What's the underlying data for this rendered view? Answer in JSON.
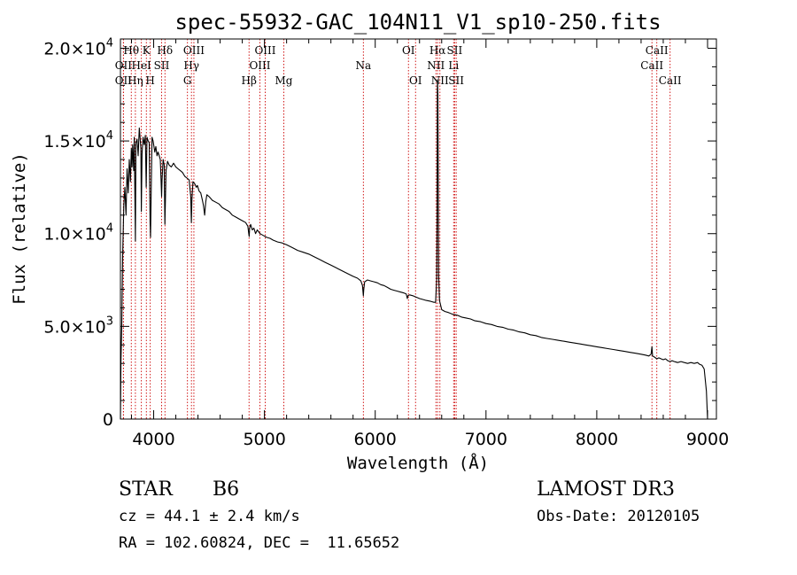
{
  "chart_data": {
    "type": "line",
    "title": "spec-55932-GAC_104N11_V1_sp10-250.fits",
    "xlabel": "Wavelength (Å)",
    "ylabel": "Flux (relative)",
    "xlim": [
      3700,
      9080
    ],
    "ylim": [
      0,
      20500
    ],
    "x_ticks": [
      {
        "value": 4000,
        "label": "4000"
      },
      {
        "value": 5000,
        "label": "5000"
      },
      {
        "value": 6000,
        "label": "6000"
      },
      {
        "value": 7000,
        "label": "7000"
      },
      {
        "value": 8000,
        "label": "8000"
      },
      {
        "value": 9000,
        "label": "9000"
      }
    ],
    "y_ticks": [
      {
        "value": 0,
        "mant": "0",
        "exp": ""
      },
      {
        "value": 5000,
        "mant": "5.0×10",
        "exp": "3"
      },
      {
        "value": 10000,
        "mant": "1.0×10",
        "exp": "4"
      },
      {
        "value": 15000,
        "mant": "1.5×10",
        "exp": "4"
      },
      {
        "value": 20000,
        "mant": "2.0×10",
        "exp": "4"
      }
    ],
    "grid": false,
    "series": [
      {
        "name": "spectrum",
        "points": [
          [
            3700,
            0
          ],
          [
            3705,
            3200
          ],
          [
            3712,
            5000
          ],
          [
            3720,
            8800
          ],
          [
            3730,
            11500
          ],
          [
            3740,
            12500
          ],
          [
            3750,
            11000
          ],
          [
            3760,
            13500
          ],
          [
            3770,
            12200
          ],
          [
            3780,
            14000
          ],
          [
            3790,
            12800
          ],
          [
            3798,
            14600
          ],
          [
            3805,
            13600
          ],
          [
            3810,
            14800
          ],
          [
            3820,
            13400
          ],
          [
            3825,
            15200
          ],
          [
            3835,
            9600
          ],
          [
            3840,
            14900
          ],
          [
            3850,
            15100
          ],
          [
            3860,
            14200
          ],
          [
            3870,
            15700
          ],
          [
            3885,
            14600
          ],
          [
            3889,
            11200
          ],
          [
            3895,
            14300
          ],
          [
            3905,
            15200
          ],
          [
            3915,
            14800
          ],
          [
            3925,
            15300
          ],
          [
            3933,
            12500
          ],
          [
            3940,
            15200
          ],
          [
            3950,
            15000
          ],
          [
            3960,
            14900
          ],
          [
            3968,
            10600
          ],
          [
            3972,
            9800
          ],
          [
            3978,
            12500
          ],
          [
            3985,
            15200
          ],
          [
            3995,
            15000
          ],
          [
            4010,
            14400
          ],
          [
            4020,
            14700
          ],
          [
            4030,
            14200
          ],
          [
            4040,
            14400
          ],
          [
            4050,
            14200
          ],
          [
            4060,
            14000
          ],
          [
            4066,
            13000
          ],
          [
            4072,
            12000
          ],
          [
            4076,
            12900
          ],
          [
            4085,
            14000
          ],
          [
            4095,
            13700
          ],
          [
            4101,
            10500
          ],
          [
            4106,
            11800
          ],
          [
            4112,
            13400
          ],
          [
            4125,
            13900
          ],
          [
            4140,
            13700
          ],
          [
            4160,
            13600
          ],
          [
            4180,
            13800
          ],
          [
            4200,
            13600
          ],
          [
            4220,
            13500
          ],
          [
            4240,
            13400
          ],
          [
            4260,
            13300
          ],
          [
            4280,
            13100
          ],
          [
            4300,
            13000
          ],
          [
            4320,
            12900
          ],
          [
            4335,
            12000
          ],
          [
            4340,
            10600
          ],
          [
            4345,
            11800
          ],
          [
            4355,
            12800
          ],
          [
            4370,
            12700
          ],
          [
            4385,
            12500
          ],
          [
            4395,
            12600
          ],
          [
            4410,
            12300
          ],
          [
            4425,
            12200
          ],
          [
            4440,
            11800
          ],
          [
            4450,
            11500
          ],
          [
            4460,
            11000
          ],
          [
            4470,
            11700
          ],
          [
            4480,
            12100
          ],
          [
            4500,
            12000
          ],
          [
            4530,
            11800
          ],
          [
            4560,
            11700
          ],
          [
            4590,
            11600
          ],
          [
            4620,
            11400
          ],
          [
            4650,
            11300
          ],
          [
            4680,
            11200
          ],
          [
            4710,
            11000
          ],
          [
            4740,
            10900
          ],
          [
            4770,
            10800
          ],
          [
            4800,
            10700
          ],
          [
            4830,
            10600
          ],
          [
            4850,
            10400
          ],
          [
            4858,
            10000
          ],
          [
            4862,
            9850
          ],
          [
            4866,
            10300
          ],
          [
            4875,
            10500
          ],
          [
            4890,
            10200
          ],
          [
            4905,
            10300
          ],
          [
            4920,
            10000
          ],
          [
            4935,
            10200
          ],
          [
            4960,
            10000
          ],
          [
            4990,
            9900
          ],
          [
            5020,
            9800
          ],
          [
            5050,
            9750
          ],
          [
            5080,
            9650
          ],
          [
            5120,
            9550
          ],
          [
            5160,
            9500
          ],
          [
            5200,
            9400
          ],
          [
            5250,
            9250
          ],
          [
            5300,
            9100
          ],
          [
            5350,
            9000
          ],
          [
            5400,
            8900
          ],
          [
            5450,
            8750
          ],
          [
            5500,
            8600
          ],
          [
            5550,
            8450
          ],
          [
            5600,
            8300
          ],
          [
            5650,
            8150
          ],
          [
            5700,
            8000
          ],
          [
            5750,
            7850
          ],
          [
            5800,
            7700
          ],
          [
            5840,
            7600
          ],
          [
            5870,
            7450
          ],
          [
            5885,
            7200
          ],
          [
            5893,
            6650
          ],
          [
            5897,
            7000
          ],
          [
            5905,
            7400
          ],
          [
            5930,
            7500
          ],
          [
            5960,
            7450
          ],
          [
            5990,
            7400
          ],
          [
            6020,
            7350
          ],
          [
            6050,
            7250
          ],
          [
            6080,
            7200
          ],
          [
            6110,
            7100
          ],
          [
            6140,
            7000
          ],
          [
            6170,
            6950
          ],
          [
            6200,
            6900
          ],
          [
            6230,
            6850
          ],
          [
            6260,
            6800
          ],
          [
            6280,
            6750
          ],
          [
            6290,
            6500
          ],
          [
            6295,
            6650
          ],
          [
            6310,
            6700
          ],
          [
            6340,
            6650
          ],
          [
            6360,
            6600
          ],
          [
            6380,
            6550
          ],
          [
            6400,
            6500
          ],
          [
            6430,
            6450
          ],
          [
            6460,
            6400
          ],
          [
            6500,
            6350
          ],
          [
            6530,
            6300
          ],
          [
            6545,
            6300
          ],
          [
            6555,
            7500
          ],
          [
            6559,
            11000
          ],
          [
            6561,
            17800
          ],
          [
            6563,
            18300
          ],
          [
            6566,
            17500
          ],
          [
            6569,
            12500
          ],
          [
            6572,
            7800
          ],
          [
            6580,
            6400
          ],
          [
            6600,
            5900
          ],
          [
            6630,
            5800
          ],
          [
            6660,
            5750
          ],
          [
            6700,
            5650
          ],
          [
            6740,
            5600
          ],
          [
            6780,
            5500
          ],
          [
            6820,
            5450
          ],
          [
            6860,
            5400
          ],
          [
            6900,
            5300
          ],
          [
            6950,
            5250
          ],
          [
            7000,
            5150
          ],
          [
            7050,
            5100
          ],
          [
            7100,
            5000
          ],
          [
            7150,
            4950
          ],
          [
            7200,
            4850
          ],
          [
            7250,
            4800
          ],
          [
            7300,
            4700
          ],
          [
            7350,
            4650
          ],
          [
            7400,
            4550
          ],
          [
            7450,
            4500
          ],
          [
            7500,
            4400
          ],
          [
            7550,
            4350
          ],
          [
            7600,
            4300
          ],
          [
            7650,
            4250
          ],
          [
            7700,
            4200
          ],
          [
            7750,
            4150
          ],
          [
            7800,
            4100
          ],
          [
            7850,
            4050
          ],
          [
            7900,
            4000
          ],
          [
            7950,
            3950
          ],
          [
            8000,
            3900
          ],
          [
            8050,
            3850
          ],
          [
            8100,
            3800
          ],
          [
            8150,
            3750
          ],
          [
            8200,
            3700
          ],
          [
            8250,
            3650
          ],
          [
            8300,
            3600
          ],
          [
            8350,
            3550
          ],
          [
            8400,
            3500
          ],
          [
            8440,
            3450
          ],
          [
            8470,
            3400
          ],
          [
            8490,
            3500
          ],
          [
            8498,
            3900
          ],
          [
            8504,
            3400
          ],
          [
            8520,
            3350
          ],
          [
            8542,
            3250
          ],
          [
            8560,
            3300
          ],
          [
            8580,
            3250
          ],
          [
            8600,
            3200
          ],
          [
            8620,
            3250
          ],
          [
            8640,
            3150
          ],
          [
            8662,
            3100
          ],
          [
            8680,
            3150
          ],
          [
            8700,
            3100
          ],
          [
            8730,
            3050
          ],
          [
            8760,
            3100
          ],
          [
            8790,
            3050
          ],
          [
            8820,
            3000
          ],
          [
            8850,
            3050
          ],
          [
            8880,
            3000
          ],
          [
            8910,
            3050
          ],
          [
            8930,
            2950
          ],
          [
            8950,
            2900
          ],
          [
            8970,
            2700
          ],
          [
            8990,
            1500
          ],
          [
            9000,
            0
          ]
        ]
      }
    ],
    "spectral_lines": [
      {
        "label": "Hθ",
        "x": 3798,
        "row": 0
      },
      {
        "label": "OII",
        "x": 3727,
        "row": 1
      },
      {
        "label": "OII",
        "x": 3727,
        "row": 2
      },
      {
        "label": "K",
        "x": 3934,
        "row": 0
      },
      {
        "label": "HeI",
        "x": 3889,
        "row": 1
      },
      {
        "label": "Hη",
        "x": 3835,
        "row": 2
      },
      {
        "label": "Hδ",
        "x": 4102,
        "row": 0
      },
      {
        "label": "SII",
        "x": 4072,
        "row": 1
      },
      {
        "label": "H",
        "x": 3969,
        "row": 2
      },
      {
        "label": "OIII",
        "x": 4363,
        "row": 0
      },
      {
        "label": "Hγ",
        "x": 4341,
        "row": 1
      },
      {
        "label": "G",
        "x": 4305,
        "row": 2
      },
      {
        "label": "OIII",
        "x": 5007,
        "row": 0
      },
      {
        "label": "OIII",
        "x": 4959,
        "row": 1
      },
      {
        "label": "Hβ",
        "x": 4861,
        "row": 2
      },
      {
        "label": "Mg",
        "x": 5175,
        "row": 2
      },
      {
        "label": "Na",
        "x": 5893,
        "row": 1
      },
      {
        "label": "OI",
        "x": 6300,
        "row": 0
      },
      {
        "label": "OI",
        "x": 6364,
        "row": 2
      },
      {
        "label": "Hα",
        "x": 6563,
        "row": 0
      },
      {
        "label": "SII",
        "x": 6717,
        "row": 0
      },
      {
        "label": "NII",
        "x": 6548,
        "row": 1
      },
      {
        "label": "Li",
        "x": 6708,
        "row": 1
      },
      {
        "label": "NII",
        "x": 6584,
        "row": 2
      },
      {
        "label": "SII",
        "x": 6731,
        "row": 2
      },
      {
        "label": "CaII",
        "x": 8542,
        "row": 0
      },
      {
        "label": "CaII",
        "x": 8498,
        "row": 1
      },
      {
        "label": "CaII",
        "x": 8662,
        "row": 2
      }
    ],
    "line_marker_color": "#cc0000"
  },
  "info": {
    "object_class": "STAR",
    "subclass": "B6",
    "survey": "LAMOST DR3",
    "redshift": "cz = 44.1 ± 2.4 km/s",
    "obs_date": "Obs-Date: 20120105",
    "coords": "RA = 102.60824, DEC =  11.65652"
  }
}
